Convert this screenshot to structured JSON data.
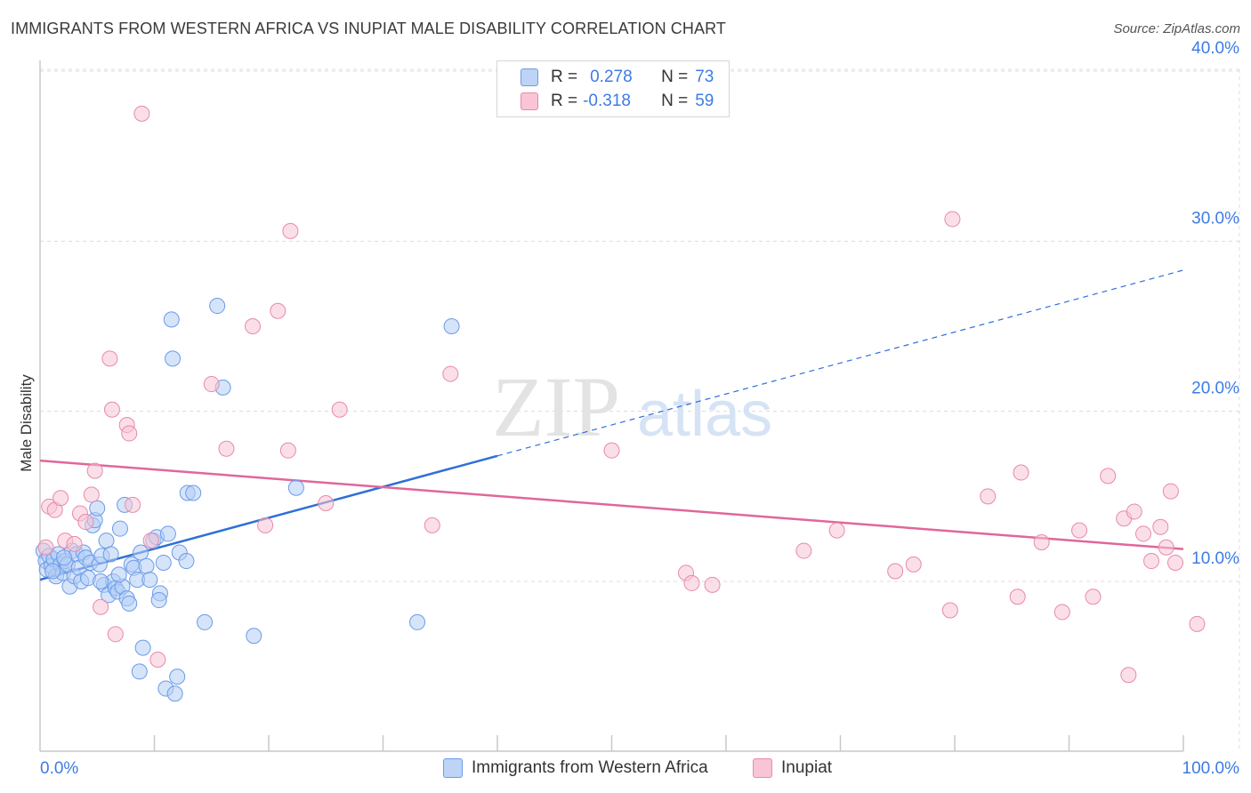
{
  "title": "IMMIGRANTS FROM WESTERN AFRICA VS INUPIAT MALE DISABILITY CORRELATION CHART",
  "source": "Source: ZipAtlas.com",
  "watermark": {
    "zip": "ZIP",
    "atlas": "atlas"
  },
  "legend_top": {
    "r_label": "R =",
    "n_label": "N =",
    "rows": [
      {
        "r": "0.278",
        "n": "73"
      },
      {
        "r": "-0.318",
        "n": "59"
      }
    ]
  },
  "legend_bottom": [
    "Immigrants from Western Africa",
    "Inupiat"
  ],
  "chart_data": {
    "type": "scatter",
    "title": "IMMIGRANTS FROM WESTERN AFRICA VS INUPIAT MALE DISABILITY CORRELATION CHART",
    "xlabel": "",
    "ylabel": "Male Disability",
    "xlim": [
      0,
      100
    ],
    "ylim": [
      0,
      42
    ],
    "x_tick_labels": [
      "0.0%",
      "100.0%"
    ],
    "y_ticks": [
      10,
      20,
      30,
      40
    ],
    "y_tick_labels": [
      "10.0%",
      "20.0%",
      "30.0%",
      "40.0%"
    ],
    "grid": true,
    "legend_position": "top-center",
    "colors": {
      "blue": "#3d7be3",
      "pink": "#e8709b",
      "blue_fill": "#bdd4f6",
      "pink_fill": "#f8c4d6"
    },
    "series": [
      {
        "name": "Immigrants from Western Africa",
        "r": 0.278,
        "n": 73,
        "trend": {
          "x0": 0,
          "y0": 10.1,
          "x1": 100,
          "y1": 28.3,
          "solid_until_x": 40
        },
        "points": [
          [
            0.3,
            11.8
          ],
          [
            0.5,
            11.2
          ],
          [
            0.6,
            10.7
          ],
          [
            0.8,
            11.5
          ],
          [
            1.0,
            10.9
          ],
          [
            1.2,
            11.3
          ],
          [
            1.4,
            10.3
          ],
          [
            1.6,
            11.6
          ],
          [
            1.8,
            11.0
          ],
          [
            2.0,
            10.5
          ],
          [
            2.2,
            11.2
          ],
          [
            2.4,
            11.0
          ],
          [
            2.6,
            9.7
          ],
          [
            2.8,
            11.8
          ],
          [
            3.0,
            10.3
          ],
          [
            3.2,
            11.6
          ],
          [
            3.4,
            10.8
          ],
          [
            3.6,
            10.0
          ],
          [
            3.8,
            11.7
          ],
          [
            4.0,
            11.4
          ],
          [
            4.2,
            10.2
          ],
          [
            4.4,
            11.1
          ],
          [
            4.6,
            13.3
          ],
          [
            4.8,
            13.6
          ],
          [
            5.0,
            14.3
          ],
          [
            5.2,
            11.0
          ],
          [
            5.4,
            11.5
          ],
          [
            5.6,
            9.8
          ],
          [
            5.8,
            12.4
          ],
          [
            6.0,
            9.2
          ],
          [
            6.2,
            11.6
          ],
          [
            6.4,
            10.0
          ],
          [
            6.6,
            9.6
          ],
          [
            6.8,
            9.4
          ],
          [
            7.0,
            13.1
          ],
          [
            7.2,
            9.7
          ],
          [
            7.4,
            14.5
          ],
          [
            7.6,
            9.0
          ],
          [
            7.8,
            8.7
          ],
          [
            8.0,
            11.0
          ],
          [
            8.2,
            10.8
          ],
          [
            8.5,
            10.1
          ],
          [
            8.8,
            11.7
          ],
          [
            9.0,
            6.1
          ],
          [
            8.7,
            4.7
          ],
          [
            9.3,
            10.9
          ],
          [
            9.6,
            10.1
          ],
          [
            9.9,
            12.4
          ],
          [
            10.2,
            12.6
          ],
          [
            10.5,
            9.3
          ],
          [
            10.4,
            8.9
          ],
          [
            11.0,
            3.7
          ],
          [
            11.2,
            12.8
          ],
          [
            11.5,
            25.4
          ],
          [
            11.6,
            23.1
          ],
          [
            11.8,
            3.4
          ],
          [
            12.0,
            4.4
          ],
          [
            12.2,
            11.7
          ],
          [
            12.8,
            11.2
          ],
          [
            12.9,
            15.2
          ],
          [
            13.4,
            15.2
          ],
          [
            14.4,
            7.6
          ],
          [
            15.5,
            26.2
          ],
          [
            16.0,
            21.4
          ],
          [
            18.7,
            6.8
          ],
          [
            22.4,
            15.5
          ],
          [
            33.0,
            7.6
          ],
          [
            36.0,
            25.0
          ],
          [
            5.3,
            10.0
          ],
          [
            2.1,
            11.4
          ],
          [
            6.9,
            10.4
          ],
          [
            10.8,
            11.1
          ],
          [
            1.1,
            10.6
          ]
        ]
      },
      {
        "name": "Inupiat",
        "r": -0.318,
        "n": 59,
        "trend": {
          "x0": 0,
          "y0": 17.1,
          "x1": 100,
          "y1": 11.9,
          "solid_until_x": 100
        },
        "points": [
          [
            0.5,
            12.0
          ],
          [
            0.8,
            14.4
          ],
          [
            1.3,
            14.2
          ],
          [
            1.8,
            14.9
          ],
          [
            2.2,
            12.4
          ],
          [
            3.0,
            12.2
          ],
          [
            3.5,
            14.0
          ],
          [
            4.0,
            13.5
          ],
          [
            4.5,
            15.1
          ],
          [
            4.8,
            16.5
          ],
          [
            5.3,
            8.5
          ],
          [
            6.1,
            23.1
          ],
          [
            6.3,
            20.1
          ],
          [
            6.6,
            6.9
          ],
          [
            7.6,
            19.2
          ],
          [
            7.8,
            18.7
          ],
          [
            8.1,
            14.5
          ],
          [
            8.9,
            37.5
          ],
          [
            9.7,
            12.4
          ],
          [
            10.3,
            5.4
          ],
          [
            15.0,
            21.6
          ],
          [
            16.3,
            17.8
          ],
          [
            18.6,
            25.0
          ],
          [
            19.7,
            13.3
          ],
          [
            20.8,
            25.9
          ],
          [
            21.7,
            17.7
          ],
          [
            21.9,
            30.6
          ],
          [
            25.0,
            14.6
          ],
          [
            26.2,
            20.1
          ],
          [
            34.3,
            13.3
          ],
          [
            35.9,
            22.2
          ],
          [
            50.0,
            17.7
          ],
          [
            56.5,
            10.5
          ],
          [
            57.0,
            9.9
          ],
          [
            58.8,
            9.8
          ],
          [
            66.8,
            11.8
          ],
          [
            69.7,
            13.0
          ],
          [
            74.8,
            10.6
          ],
          [
            76.4,
            11.0
          ],
          [
            79.6,
            8.3
          ],
          [
            79.8,
            31.3
          ],
          [
            82.9,
            15.0
          ],
          [
            85.5,
            9.1
          ],
          [
            85.8,
            16.4
          ],
          [
            87.6,
            12.3
          ],
          [
            89.4,
            8.2
          ],
          [
            90.9,
            13.0
          ],
          [
            92.1,
            9.1
          ],
          [
            93.4,
            16.2
          ],
          [
            94.8,
            13.7
          ],
          [
            95.2,
            4.5
          ],
          [
            95.7,
            14.1
          ],
          [
            96.5,
            12.8
          ],
          [
            97.2,
            11.2
          ],
          [
            98.0,
            13.2
          ],
          [
            98.5,
            12.0
          ],
          [
            98.9,
            15.3
          ],
          [
            99.3,
            11.1
          ],
          [
            101.2,
            7.5
          ]
        ]
      }
    ]
  }
}
